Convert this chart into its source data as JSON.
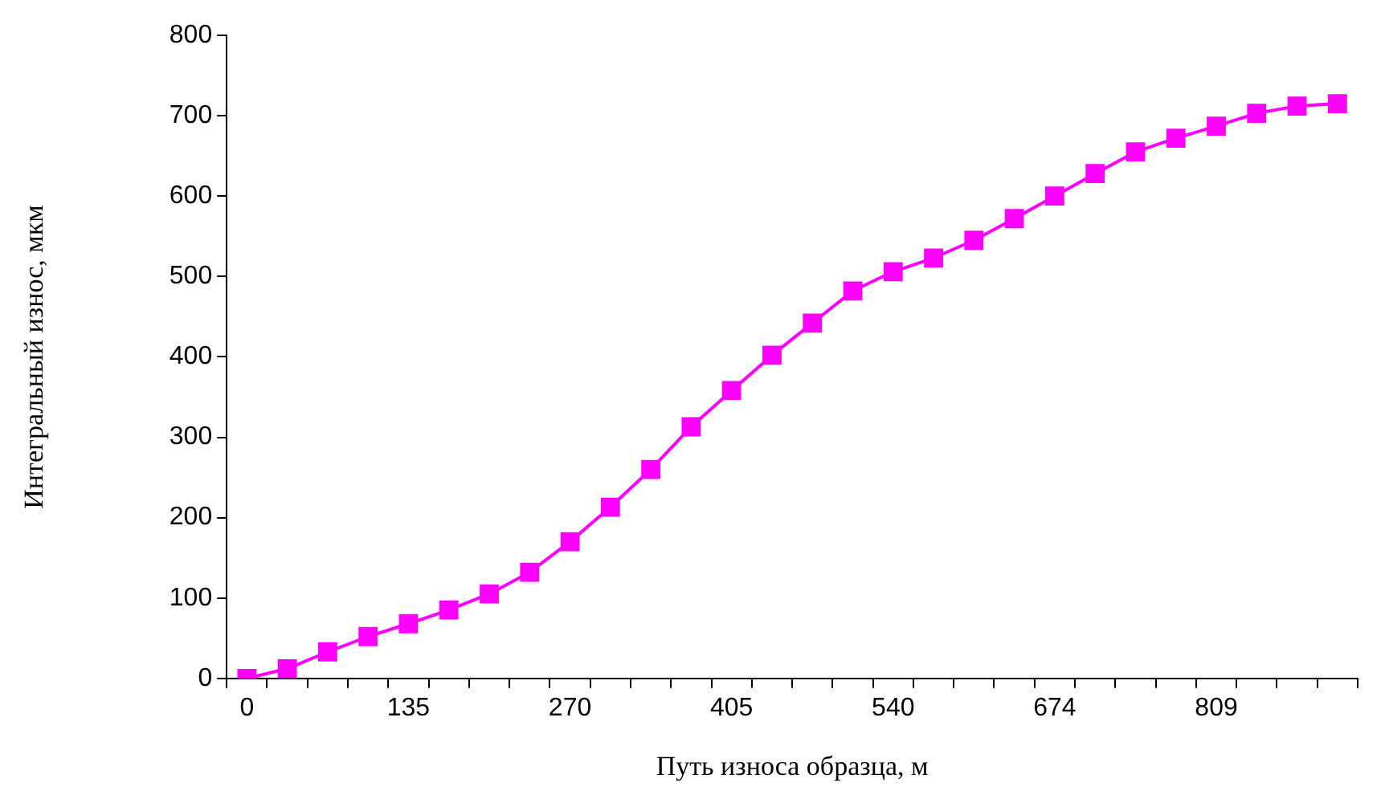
{
  "chart_data": {
    "type": "line",
    "xlabel": "Путь износа образца, м",
    "ylabel": "Интегральный износ, мкм",
    "categories": [
      "0",
      null,
      null,
      null,
      "135",
      null,
      null,
      null,
      "270",
      null,
      null,
      null,
      "405",
      null,
      null,
      null,
      "540",
      null,
      null,
      null,
      "674",
      null,
      null,
      null,
      "809",
      null,
      null,
      null
    ],
    "series": [
      {
        "color": "#ff00ff",
        "values": [
          0,
          12,
          33,
          52,
          68,
          85,
          105,
          132,
          170,
          213,
          260,
          313,
          358,
          402,
          442,
          482,
          506,
          523,
          545,
          572,
          600,
          628,
          655,
          672,
          687,
          703,
          712,
          715
        ]
      }
    ],
    "ylim": [
      0,
      800
    ],
    "yticks": [
      0,
      100,
      200,
      300,
      400,
      500,
      600,
      700,
      800
    ],
    "grid": false,
    "legend": false,
    "marker": "square",
    "line_style": "solid"
  }
}
